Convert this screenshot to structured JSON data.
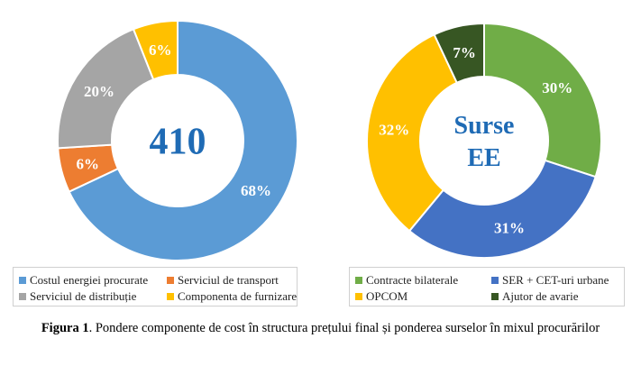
{
  "chart_data": [
    {
      "type": "pie",
      "center_text": "410",
      "center_color": "#1F6BB5",
      "labels": [
        "Costul energiei procurate",
        "Serviciul de transport",
        "Serviciul de distribuție",
        "Componenta de furnizare"
      ],
      "values": [
        68,
        6,
        20,
        6
      ],
      "value_labels": [
        "68%",
        "6%",
        "20%",
        "6%"
      ],
      "colors": [
        "#5B9BD5",
        "#ED7D31",
        "#A5A5A5",
        "#FFC000"
      ],
      "legend_position": "bottom"
    },
    {
      "type": "pie",
      "center_text": [
        "Surse",
        "EE"
      ],
      "center_color": "#1F6BB5",
      "labels": [
        "Contracte bilaterale",
        "SER + CET-uri urbane",
        "OPCOM",
        "Ajutor de avarie"
      ],
      "values": [
        30,
        31,
        32,
        7
      ],
      "value_labels": [
        "30%",
        "31%",
        "32%",
        "7%"
      ],
      "colors": [
        "#70AD47",
        "#4472C4",
        "#FFC000",
        "#375623"
      ],
      "legend_position": "bottom"
    }
  ],
  "caption": {
    "prefix": "Figura 1",
    "text": ". Pondere componente de cost în structura prețului final și ponderea surselor în mixul procurărilor"
  }
}
